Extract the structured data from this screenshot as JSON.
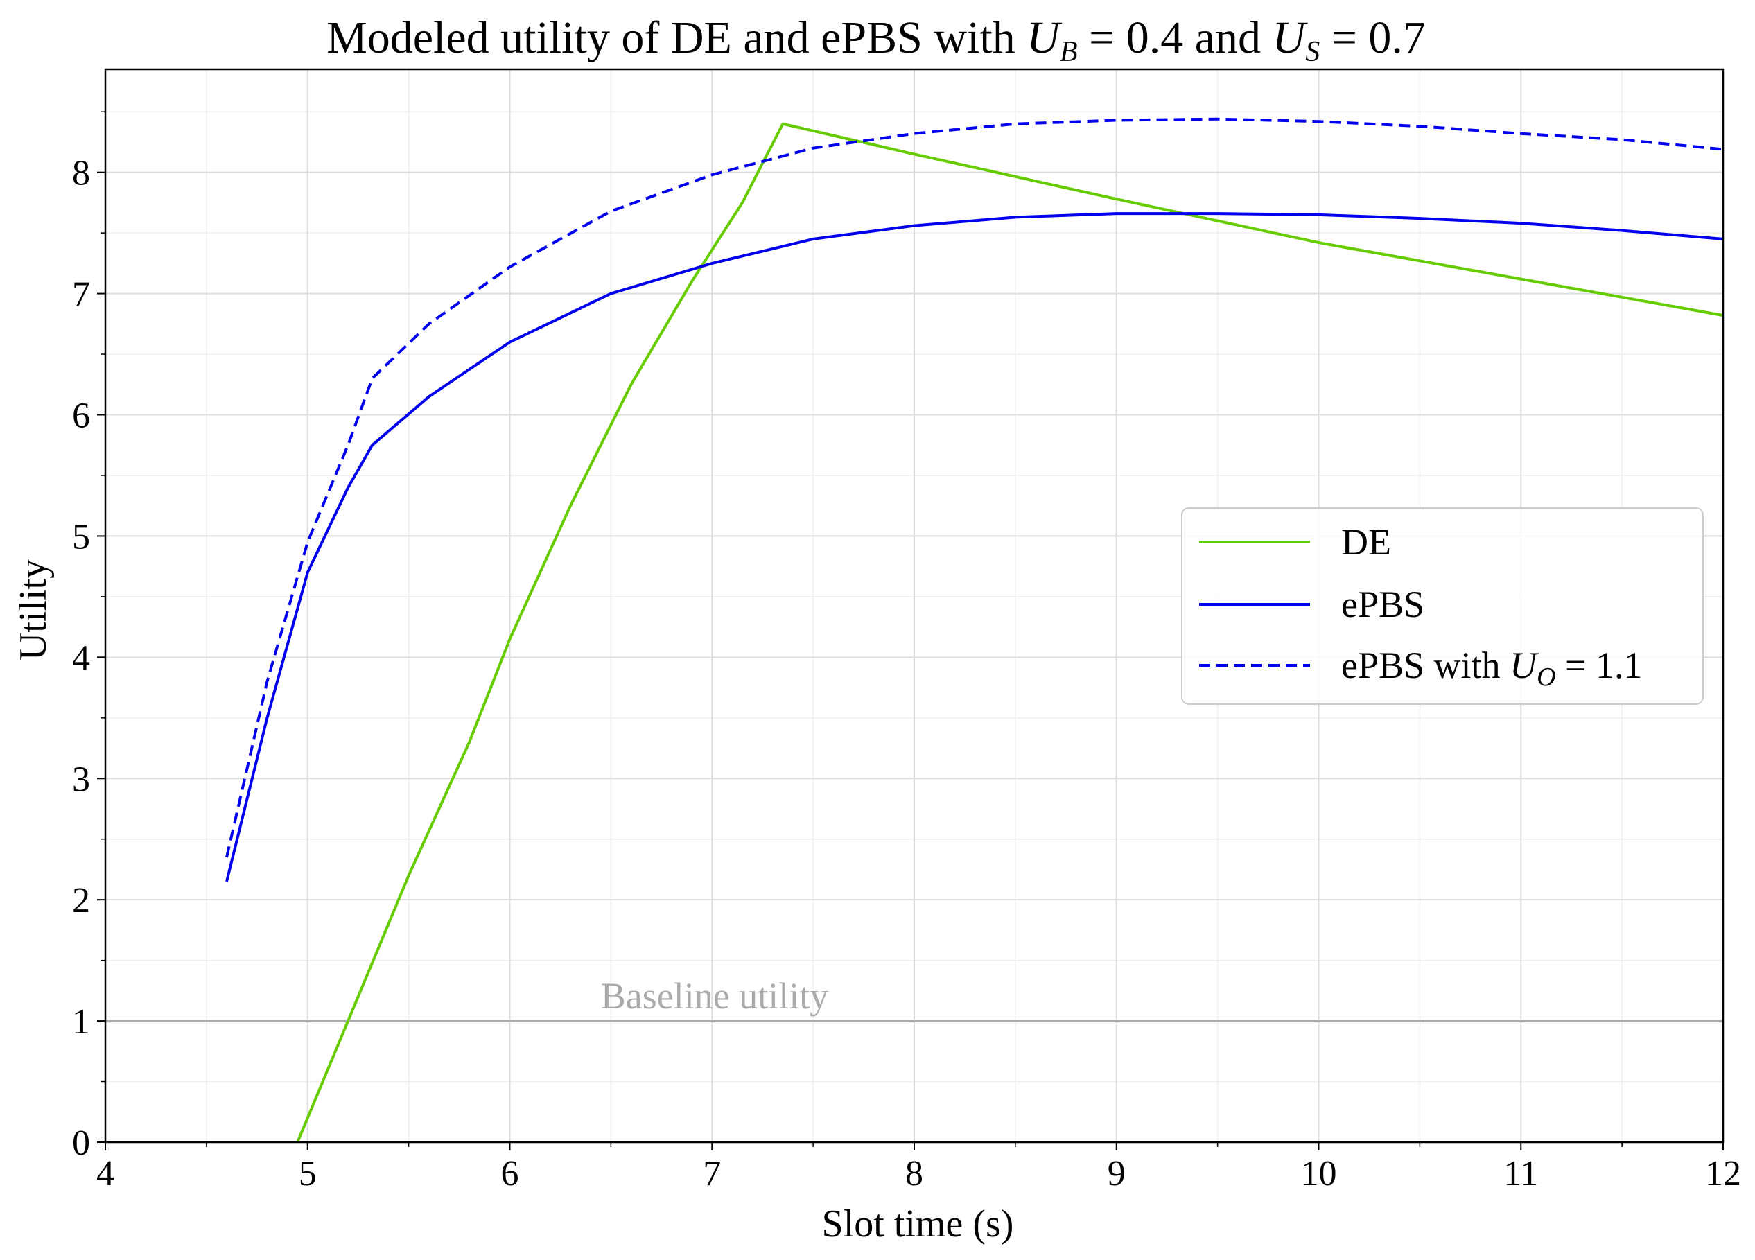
{
  "chart_data": {
    "type": "line",
    "title": {
      "prefix": "Modeled utility of DE and ePBS with ",
      "ub_base": "U",
      "ub_sub": "B",
      "ub_value": " = 0.4",
      "joiner": " and ",
      "us_base": "U",
      "us_sub": "S",
      "us_value": " = 0.7"
    },
    "xlabel": "Slot time (s)",
    "ylabel": "Utility",
    "xlim": [
      4,
      12
    ],
    "ylim": [
      0,
      8.85
    ],
    "x_ticks": [
      "4",
      "5",
      "6",
      "7",
      "8",
      "9",
      "10",
      "11",
      "12"
    ],
    "y_ticks": [
      "0",
      "1",
      "2",
      "3",
      "4",
      "5",
      "6",
      "7",
      "8"
    ],
    "grid": "major and minor",
    "legend_position": "center-right",
    "baseline": {
      "y": 1,
      "label": "Baseline utility",
      "color": "#aaaaaa"
    },
    "series": [
      {
        "name": "DE",
        "color": "#66cc00",
        "style": "solid",
        "points": [
          [
            4.95,
            0
          ],
          [
            5.2,
            1.0
          ],
          [
            5.5,
            2.2
          ],
          [
            5.8,
            3.3
          ],
          [
            6.0,
            4.15
          ],
          [
            6.3,
            5.25
          ],
          [
            6.6,
            6.25
          ],
          [
            6.9,
            7.1
          ],
          [
            7.15,
            7.75
          ],
          [
            7.35,
            8.4
          ],
          [
            8.0,
            8.15
          ],
          [
            9.0,
            7.78
          ],
          [
            10.0,
            7.42
          ],
          [
            11.0,
            7.12
          ],
          [
            12.0,
            6.82
          ]
        ]
      },
      {
        "name": "ePBS",
        "color": "#0000ee",
        "style": "solid",
        "points": [
          [
            4.6,
            2.15
          ],
          [
            4.8,
            3.5
          ],
          [
            5.0,
            4.7
          ],
          [
            5.2,
            5.4
          ],
          [
            5.32,
            5.75
          ],
          [
            5.6,
            6.15
          ],
          [
            6.0,
            6.6
          ],
          [
            6.5,
            7.0
          ],
          [
            7.0,
            7.25
          ],
          [
            7.5,
            7.45
          ],
          [
            8.0,
            7.56
          ],
          [
            8.5,
            7.63
          ],
          [
            9.0,
            7.66
          ],
          [
            9.5,
            7.66
          ],
          [
            10.0,
            7.65
          ],
          [
            10.5,
            7.62
          ],
          [
            11.0,
            7.58
          ],
          [
            11.5,
            7.52
          ],
          [
            12.0,
            7.45
          ]
        ]
      },
      {
        "name": "ePBS with U_O = 1.1",
        "label_prefix": "ePBS with ",
        "label_base": "U",
        "label_sub": "O",
        "label_value": " = 1.1",
        "color": "#0000ee",
        "style": "dashed",
        "points": [
          [
            4.6,
            2.35
          ],
          [
            4.8,
            3.8
          ],
          [
            5.0,
            4.95
          ],
          [
            5.2,
            5.75
          ],
          [
            5.32,
            6.3
          ],
          [
            5.6,
            6.75
          ],
          [
            6.0,
            7.22
          ],
          [
            6.5,
            7.68
          ],
          [
            7.0,
            7.98
          ],
          [
            7.5,
            8.2
          ],
          [
            8.0,
            8.32
          ],
          [
            8.5,
            8.4
          ],
          [
            9.0,
            8.43
          ],
          [
            9.5,
            8.44
          ],
          [
            10.0,
            8.42
          ],
          [
            10.5,
            8.38
          ],
          [
            11.0,
            8.32
          ],
          [
            11.5,
            8.27
          ],
          [
            12.0,
            8.19
          ]
        ]
      }
    ]
  }
}
